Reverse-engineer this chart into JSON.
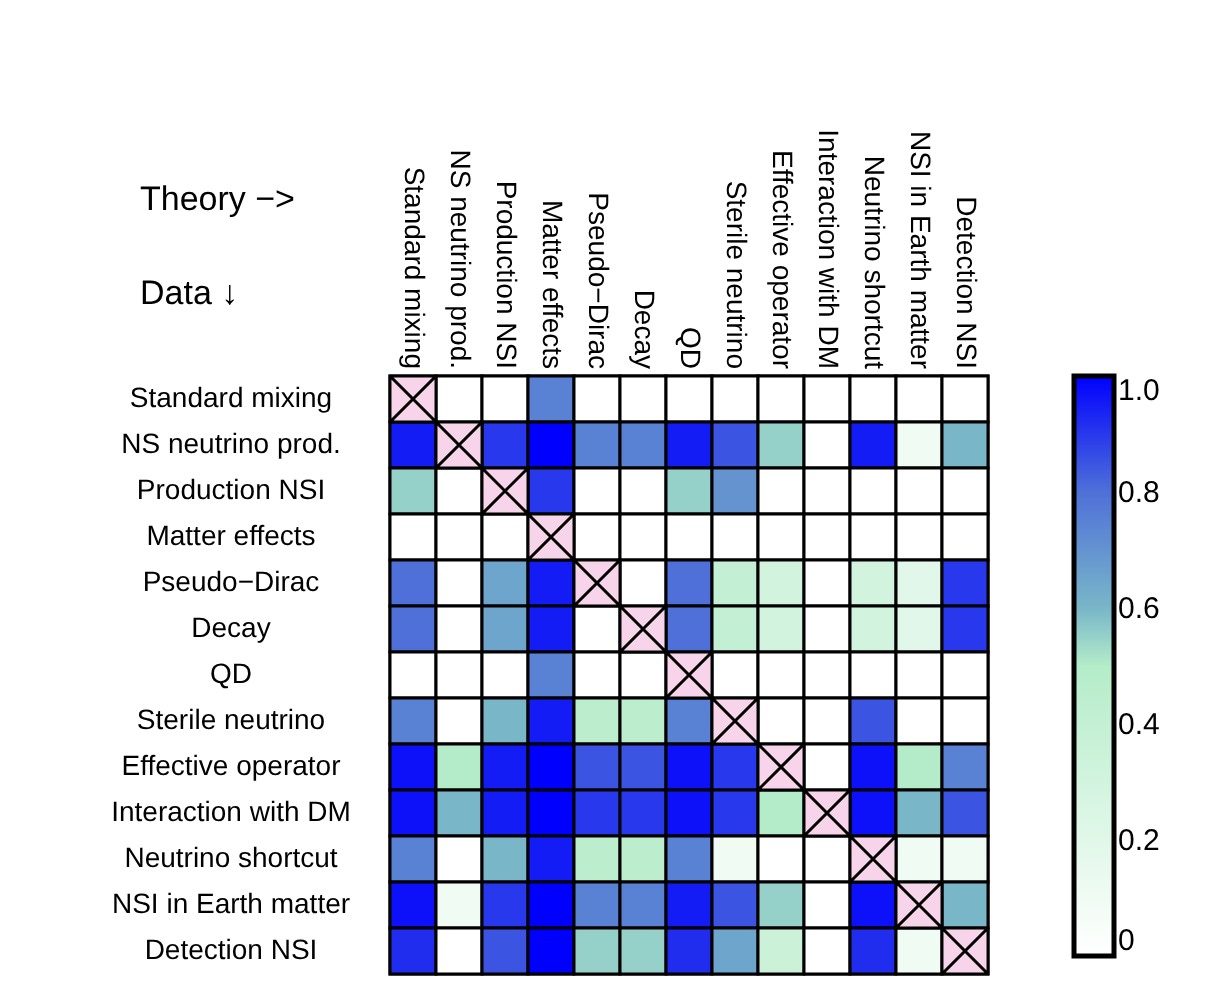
{
  "chart_data": {
    "type": "heatmap",
    "categories": [
      "Standard mixing",
      "NS neutrino prod.",
      "Production NSI",
      "Matter effects",
      "Pseudo−Dirac",
      "Decay",
      "QD",
      "Sterile neutrino",
      "Effective operator",
      "Interaction with DM",
      "Neutrino shortcut",
      "NSI in Earth matter",
      "Detection NSI"
    ],
    "y_categories": [
      "Standard mixing",
      "NS neutrino prod.",
      "Production NSI",
      "Matter effects",
      "Pseudo−Dirac",
      "Decay",
      "QD",
      "Sterile neutrino",
      "Effective operator",
      "Interaction with DM",
      "Neutrino shortcut",
      "NSI in Earth matter",
      "Detection NSI"
    ],
    "cells": [
      [
        null,
        0,
        0,
        0.75,
        0,
        0,
        0,
        0,
        0,
        0,
        0,
        0,
        0
      ],
      [
        0.95,
        null,
        0.9,
        1.0,
        0.75,
        0.75,
        0.95,
        0.85,
        0.55,
        0,
        0.95,
        0.1,
        0.6
      ],
      [
        0.55,
        0,
        null,
        0.9,
        0,
        0,
        0.55,
        0.7,
        0,
        0,
        0,
        0,
        0
      ],
      [
        0,
        0,
        0,
        null,
        0,
        0,
        0,
        0,
        0,
        0,
        0,
        0,
        0
      ],
      [
        0.8,
        0,
        0.65,
        0.95,
        null,
        0,
        0.8,
        0.4,
        0.3,
        0,
        0.3,
        0.2,
        0.9
      ],
      [
        0.8,
        0,
        0.65,
        0.95,
        0,
        null,
        0.8,
        0.4,
        0.3,
        0,
        0.3,
        0.2,
        0.9
      ],
      [
        0,
        0,
        0,
        0.75,
        0,
        0,
        null,
        0,
        0,
        0,
        0,
        0,
        0
      ],
      [
        0.75,
        0,
        0.6,
        0.95,
        0.45,
        0.45,
        0.75,
        null,
        0,
        0,
        0.85,
        0,
        0
      ],
      [
        0.97,
        0.5,
        0.95,
        1.0,
        0.85,
        0.85,
        0.97,
        0.9,
        null,
        0,
        0.97,
        0.5,
        0.75
      ],
      [
        0.97,
        0.6,
        0.95,
        1.0,
        0.9,
        0.9,
        0.97,
        0.9,
        0.5,
        null,
        0.97,
        0.6,
        0.85
      ],
      [
        0.75,
        0,
        0.6,
        0.95,
        0.45,
        0.45,
        0.75,
        0.1,
        0,
        0,
        null,
        0.1,
        0.1
      ],
      [
        0.97,
        0.1,
        0.9,
        1.0,
        0.75,
        0.75,
        0.95,
        0.85,
        0.55,
        0,
        0.97,
        null,
        0.6
      ],
      [
        0.92,
        0,
        0.85,
        1.0,
        0.55,
        0.55,
        0.92,
        0.65,
        0.35,
        0,
        0.92,
        0.1,
        null
      ]
    ],
    "clim": [
      0,
      1
    ],
    "cticks": [
      0,
      0.2,
      0.4,
      0.6,
      0.8,
      {
        "value": 1,
        "label": "1.0"
      }
    ],
    "annotations": [
      "Theory −>",
      "Data ↓"
    ]
  }
}
